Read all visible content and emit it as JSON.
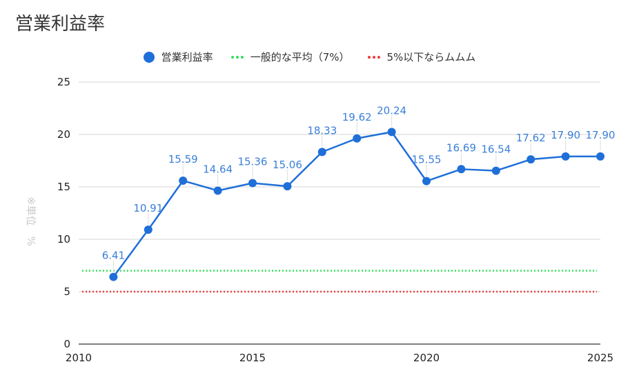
{
  "chart_data": {
    "type": "line",
    "title": "営業利益率",
    "ylabel": "※単位　%",
    "xlabel": "",
    "xlim": [
      2010,
      2025
    ],
    "ylim": [
      0,
      25
    ],
    "y_ticks": [
      0,
      5,
      10,
      15,
      20,
      25
    ],
    "x_ticks": [
      2010,
      2015,
      2020,
      2025
    ],
    "grid": true,
    "legend_position": "top",
    "series": [
      {
        "name": "営業利益率",
        "color": "#1f6fd8",
        "x": [
          2011,
          2012,
          2013,
          2014,
          2015,
          2016,
          2017,
          2018,
          2019,
          2020,
          2021,
          2022,
          2023,
          2024,
          2025
        ],
        "values": [
          6.41,
          10.91,
          15.59,
          14.64,
          15.36,
          15.06,
          18.33,
          19.62,
          20.24,
          15.55,
          16.69,
          16.54,
          17.62,
          17.9,
          17.9
        ],
        "labels": [
          "6.41",
          "10.91",
          "15.59",
          "14.64",
          "15.36",
          "15.06",
          "18.33",
          "19.62",
          "20.24",
          "15.55",
          "16.69",
          "16.54",
          "17.62",
          "17.90",
          "17.90"
        ]
      }
    ],
    "reference_lines": [
      {
        "name": "一般的な平均（7%）",
        "value": 7,
        "color": "#33e05a"
      },
      {
        "name": "5%以下ならムムム",
        "value": 5,
        "color": "#ee3b3b"
      }
    ]
  }
}
